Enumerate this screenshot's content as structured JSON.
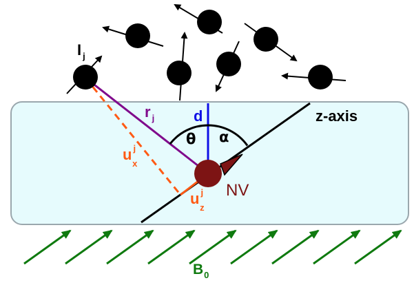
{
  "labels": {
    "spin": "I",
    "spin_sub": "j",
    "r": "r",
    "r_sub": "j",
    "d": "d",
    "theta": "θ",
    "alpha": "α",
    "z_axis": "z-axis",
    "ux": "u",
    "ux_sup": "j",
    "ux_sub": "x",
    "uz": "u",
    "uz_sup": "j",
    "uz_sub": "z",
    "nv": "NV",
    "field": "B",
    "field_sub": "0"
  },
  "colors": {
    "substrate_fill": "#e6fbfd",
    "substrate_stroke": "#9aa7ad",
    "r_vector": "#800a8c",
    "d_line": "#1010e6",
    "u_components": "#ff5a14",
    "nv_center": "#7d1414",
    "field_arrows": "#0f7a0f",
    "spins": "#000000"
  }
}
